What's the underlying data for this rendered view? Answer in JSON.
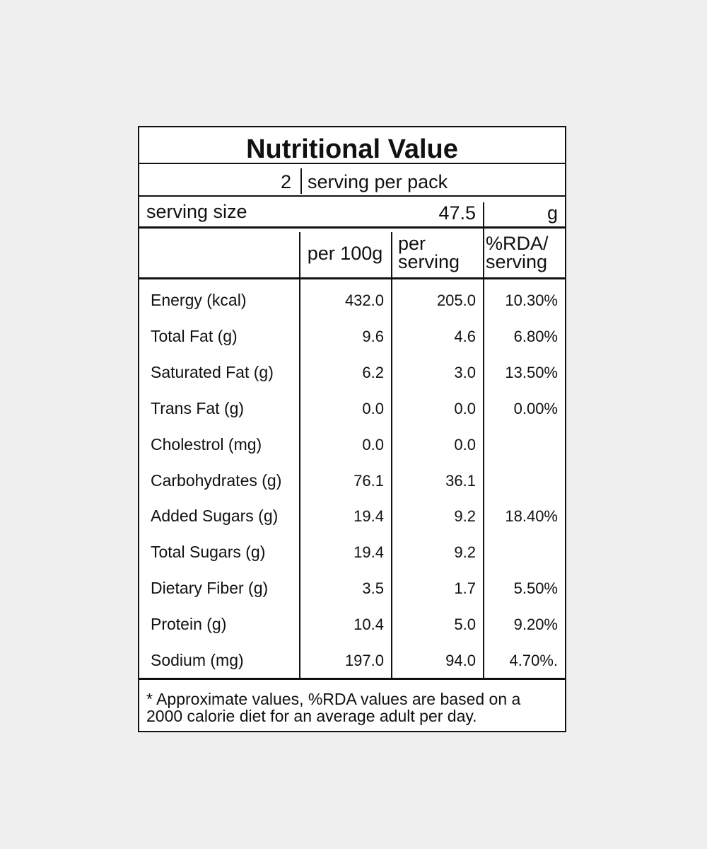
{
  "title": "Nutritional Value",
  "servings": {
    "count": "2",
    "label": "serving per pack"
  },
  "serving_size": {
    "label": "serving size",
    "value": "47.5",
    "unit": "g"
  },
  "table": {
    "headers": [
      "per 100g",
      "per\nserving",
      "%RDA/\nserving"
    ],
    "rows": [
      [
        "Energy (kcal)",
        "432.0",
        "205.0",
        "10.30%"
      ],
      [
        "Total Fat (g)",
        "9.6",
        "4.6",
        "6.80%"
      ],
      [
        "Saturated Fat (g)",
        "6.2",
        "3.0",
        "13.50%"
      ],
      [
        "Trans Fat (g)",
        "0.0",
        "0.0",
        "0.00%"
      ],
      [
        "Cholestrol (mg)",
        "0.0",
        "0.0",
        null
      ],
      [
        "Carbohydrates (g)",
        "76.1",
        "36.1",
        null
      ],
      [
        "Added Sugars (g)",
        "19.4",
        "9.2",
        "18.40%"
      ],
      [
        "Total Sugars (g)",
        "19.4",
        "9.2",
        null
      ],
      [
        "Dietary Fiber (g)",
        "3.5",
        "1.7",
        "5.50%"
      ],
      [
        "Protein (g)",
        "10.4",
        "5.0",
        "9.20%"
      ],
      [
        "Sodium (mg)",
        "197.0",
        "94.0",
        "4.70%."
      ]
    ]
  },
  "footnote": "* Approximate values, %RDA values are based on a 2000 calorie diet for an average adult per day."
}
